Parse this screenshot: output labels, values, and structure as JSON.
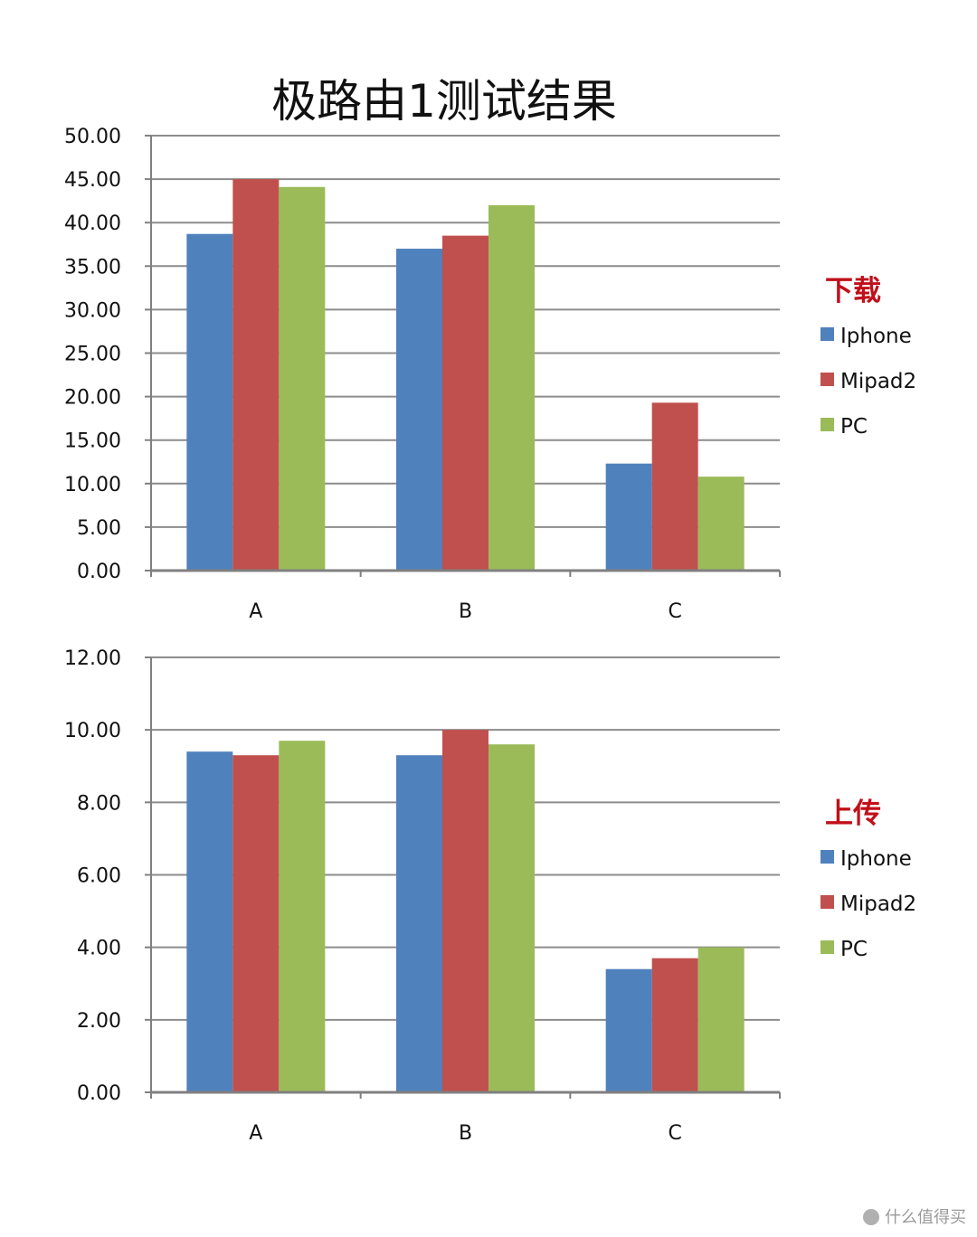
{
  "title": "极路由1测试结果",
  "colors": {
    "Iphone": "#4f81bd",
    "Mipad2": "#c0504d",
    "PC": "#9bbb59",
    "gridline": "#8c8c8c",
    "legend_title": "#c0101a"
  },
  "chart_data": [
    {
      "type": "bar",
      "legend_title": "下载",
      "categories": [
        "A",
        "B",
        "C"
      ],
      "series": [
        {
          "name": "Iphone",
          "values": [
            38.7,
            37.0,
            12.3
          ]
        },
        {
          "name": "Mipad2",
          "values": [
            45.0,
            38.5,
            19.3
          ]
        },
        {
          "name": "PC",
          "values": [
            44.1,
            42.0,
            10.8
          ]
        }
      ],
      "ylim": [
        0,
        50
      ],
      "ytick_step": 5,
      "yticks": [
        "0.00",
        "5.00",
        "10.00",
        "15.00",
        "20.00",
        "25.00",
        "30.00",
        "35.00",
        "40.00",
        "45.00",
        "50.00"
      ],
      "grid": true,
      "legend_position": "right"
    },
    {
      "type": "bar",
      "legend_title": "上传",
      "categories": [
        "A",
        "B",
        "C"
      ],
      "series": [
        {
          "name": "Iphone",
          "values": [
            9.4,
            9.3,
            3.4
          ]
        },
        {
          "name": "Mipad2",
          "values": [
            9.3,
            10.0,
            3.7
          ]
        },
        {
          "name": "PC",
          "values": [
            9.7,
            9.6,
            4.0
          ]
        }
      ],
      "ylim": [
        0,
        12
      ],
      "ytick_step": 2,
      "yticks": [
        "0.00",
        "2.00",
        "4.00",
        "6.00",
        "8.00",
        "10.00",
        "12.00"
      ],
      "grid": true,
      "legend_position": "right"
    }
  ],
  "watermark": "什么值得买"
}
